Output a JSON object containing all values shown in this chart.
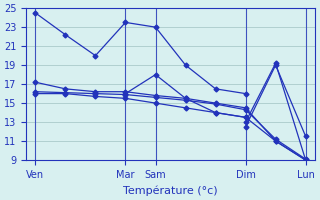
{
  "background_color": "#d8f0f0",
  "grid_color": "#b0d0d0",
  "line_color": "#2233bb",
  "xlabel": "Température (°c)",
  "ylim": [
    9,
    25
  ],
  "yticks": [
    9,
    11,
    13,
    15,
    17,
    19,
    21,
    23,
    25
  ],
  "lines": [
    {
      "name": "line1_ven_peak",
      "x": [
        0,
        1,
        2,
        3,
        4,
        5,
        6,
        7
      ],
      "y": [
        24.5,
        22.2,
        20.0,
        23.5,
        23.0,
        19.0,
        16.5,
        16.0
      ]
    },
    {
      "name": "line2_flat_high",
      "x": [
        0,
        1,
        2,
        3,
        4,
        5,
        6,
        7,
        8,
        9
      ],
      "y": [
        17.2,
        16.5,
        16.2,
        16.2,
        15.8,
        15.5,
        15.0,
        14.5,
        11.0,
        9.0
      ]
    },
    {
      "name": "line3_flat_mid",
      "x": [
        0,
        1,
        2,
        3,
        4,
        5,
        6,
        7,
        8,
        9
      ],
      "y": [
        16.2,
        16.1,
        16.0,
        15.9,
        15.6,
        15.3,
        14.9,
        14.3,
        11.2,
        9.1
      ]
    },
    {
      "name": "line4_flat_lower",
      "x": [
        0,
        1,
        2,
        3,
        4,
        5,
        6,
        7,
        8,
        9
      ],
      "y": [
        16.0,
        16.0,
        15.7,
        15.5,
        15.0,
        14.5,
        14.0,
        13.5,
        11.0,
        9.0
      ]
    },
    {
      "name": "line5_sam_peak",
      "x": [
        3,
        4,
        5,
        6,
        7
      ],
      "y": [
        16.0,
        18.0,
        15.5,
        14.0,
        13.5
      ]
    },
    {
      "name": "line6_dim_lun",
      "x": [
        7,
        8,
        9
      ],
      "y": [
        12.5,
        19.0,
        11.5
      ]
    },
    {
      "name": "line7_dim_lun2",
      "x": [
        7,
        8,
        9
      ],
      "y": [
        13.0,
        19.2,
        9.0
      ]
    }
  ],
  "vline_positions": [
    0,
    3,
    4,
    7,
    9
  ],
  "day_positions": [
    0,
    3,
    4,
    7,
    9
  ],
  "day_labels": [
    "Ven",
    "Mar",
    "Sam",
    "Dim",
    "Lun"
  ]
}
